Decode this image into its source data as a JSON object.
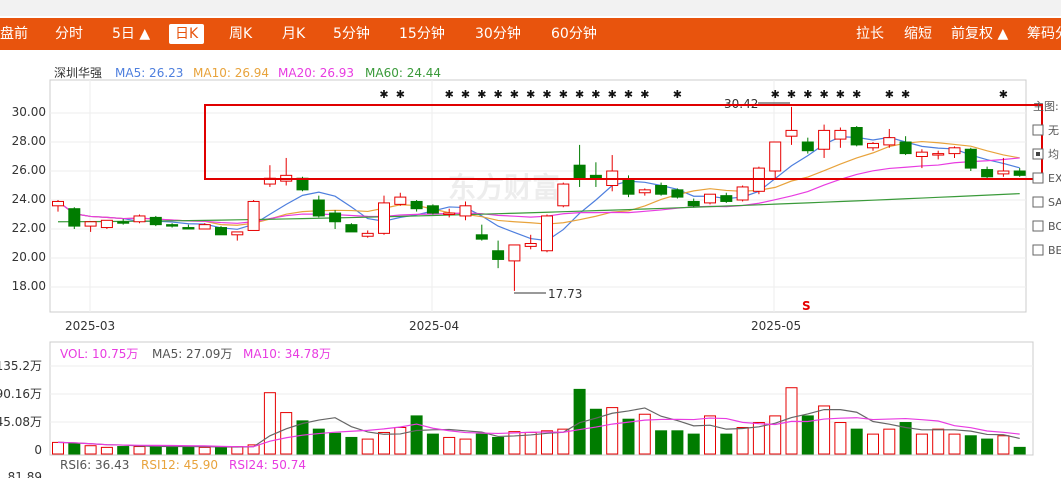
{
  "toolbar": {
    "tabs": [
      "盘前",
      "分时",
      "5日 ▲",
      "日K",
      "周K",
      "月K",
      "5分钟",
      "15分钟",
      "30分钟",
      "60分钟"
    ],
    "active_tab": "日K",
    "right": [
      "拉长",
      "缩短",
      "前复权 ▲",
      "筹码分"
    ]
  },
  "legend": {
    "name": "深圳华强",
    "ma5": "MA5: 26.23",
    "ma10": "MA10: 26.94",
    "ma20": "MA20: 26.93",
    "ma60": "MA60: 24.44"
  },
  "price_axis": [
    "30.00",
    "28.00",
    "26.00",
    "24.00",
    "22.00",
    "20.00",
    "18.00"
  ],
  "date_axis": [
    "2025-03",
    "2025-04",
    "2025-05"
  ],
  "annotations": {
    "high": "30.42",
    "low": "17.73",
    "marker": "S"
  },
  "side_panel": [
    "主图:",
    "无",
    "均",
    "EX",
    "SA",
    "BO",
    "BE"
  ],
  "watermark": "东方财富",
  "volume": {
    "legend": {
      "vol": "VOL: 10.75万",
      "ma5": "MA5: 27.09万",
      "ma10": "MA10: 34.78万"
    },
    "axis": [
      "135.2万",
      "90.16万",
      "45.08万",
      "0"
    ]
  },
  "rsi": {
    "legend": {
      "rsi6": "RSI6: 36.43",
      "rsi12": "RSI12: 45.90",
      "rsi24": "RSI24: 50.74"
    },
    "axis_top": "81.89"
  },
  "colors": {
    "up": "#e60000",
    "down": "#007c00",
    "toolbar": "#e8540d",
    "ma5": "#4e7fde",
    "ma10": "#e8a33c",
    "ma20": "#e83ce1",
    "ma60": "#3a9a3a",
    "highlight": "#e00000"
  },
  "chart_data": {
    "type": "candlestick",
    "title": "深圳华强",
    "ylim": [
      16.5,
      31.5
    ],
    "candles": [
      {
        "o": 23.6,
        "h": 24.0,
        "l": 23.2,
        "c": 23.9
      },
      {
        "o": 23.4,
        "h": 23.5,
        "l": 22.0,
        "c": 22.2
      },
      {
        "o": 22.2,
        "h": 22.5,
        "l": 21.8,
        "c": 22.5
      },
      {
        "o": 22.1,
        "h": 22.6,
        "l": 22.0,
        "c": 22.6
      },
      {
        "o": 22.5,
        "h": 22.7,
        "l": 22.3,
        "c": 22.4
      },
      {
        "o": 22.5,
        "h": 23.0,
        "l": 22.4,
        "c": 22.9
      },
      {
        "o": 22.8,
        "h": 22.9,
        "l": 22.2,
        "c": 22.3
      },
      {
        "o": 22.3,
        "h": 22.4,
        "l": 22.1,
        "c": 22.2
      },
      {
        "o": 22.1,
        "h": 22.3,
        "l": 22.0,
        "c": 22.0
      },
      {
        "o": 22.0,
        "h": 22.4,
        "l": 22.0,
        "c": 22.3
      },
      {
        "o": 22.1,
        "h": 22.2,
        "l": 21.6,
        "c": 21.6
      },
      {
        "o": 21.6,
        "h": 21.8,
        "l": 21.2,
        "c": 21.8
      },
      {
        "o": 21.9,
        "h": 24.0,
        "l": 21.9,
        "c": 23.9
      },
      {
        "o": 25.1,
        "h": 26.4,
        "l": 24.9,
        "c": 25.5
      },
      {
        "o": 25.3,
        "h": 26.9,
        "l": 25.0,
        "c": 25.7
      },
      {
        "o": 25.5,
        "h": 25.6,
        "l": 24.6,
        "c": 24.7
      },
      {
        "o": 24.0,
        "h": 24.3,
        "l": 22.8,
        "c": 22.9
      },
      {
        "o": 23.1,
        "h": 23.3,
        "l": 22.0,
        "c": 22.5
      },
      {
        "o": 22.3,
        "h": 22.4,
        "l": 21.8,
        "c": 21.8
      },
      {
        "o": 21.5,
        "h": 21.9,
        "l": 21.4,
        "c": 21.7
      },
      {
        "o": 21.7,
        "h": 24.3,
        "l": 21.6,
        "c": 23.8
      },
      {
        "o": 23.7,
        "h": 24.5,
        "l": 23.6,
        "c": 24.2
      },
      {
        "o": 23.9,
        "h": 24.0,
        "l": 23.2,
        "c": 23.4
      },
      {
        "o": 23.6,
        "h": 23.7,
        "l": 23.0,
        "c": 23.1
      },
      {
        "o": 23.0,
        "h": 23.4,
        "l": 22.8,
        "c": 23.1
      },
      {
        "o": 22.9,
        "h": 23.9,
        "l": 22.6,
        "c": 23.6
      },
      {
        "o": 21.6,
        "h": 22.3,
        "l": 21.2,
        "c": 21.3
      },
      {
        "o": 20.5,
        "h": 21.2,
        "l": 19.3,
        "c": 19.9
      },
      {
        "o": 19.8,
        "h": 20.9,
        "l": 17.73,
        "c": 20.9
      },
      {
        "o": 20.8,
        "h": 21.6,
        "l": 20.6,
        "c": 21.0
      },
      {
        "o": 20.5,
        "h": 23.0,
        "l": 20.4,
        "c": 22.9
      },
      {
        "o": 23.6,
        "h": 25.2,
        "l": 23.5,
        "c": 25.1
      },
      {
        "o": 26.4,
        "h": 27.8,
        "l": 24.9,
        "c": 25.5
      },
      {
        "o": 25.7,
        "h": 26.6,
        "l": 24.9,
        "c": 25.5
      },
      {
        "o": 25.0,
        "h": 27.1,
        "l": 24.6,
        "c": 26.0
      },
      {
        "o": 25.4,
        "h": 25.7,
        "l": 24.2,
        "c": 24.4
      },
      {
        "o": 24.5,
        "h": 24.8,
        "l": 24.3,
        "c": 24.7
      },
      {
        "o": 25.0,
        "h": 25.2,
        "l": 24.3,
        "c": 24.4
      },
      {
        "o": 24.7,
        "h": 24.8,
        "l": 24.1,
        "c": 24.2
      },
      {
        "o": 23.9,
        "h": 24.1,
        "l": 23.5,
        "c": 23.6
      },
      {
        "o": 23.8,
        "h": 24.4,
        "l": 23.7,
        "c": 24.4
      },
      {
        "o": 24.3,
        "h": 24.5,
        "l": 23.8,
        "c": 23.9
      },
      {
        "o": 24.0,
        "h": 25.0,
        "l": 23.9,
        "c": 24.9
      },
      {
        "o": 24.6,
        "h": 26.3,
        "l": 24.4,
        "c": 26.2
      },
      {
        "o": 26.0,
        "h": 28.0,
        "l": 25.5,
        "c": 28.0
      },
      {
        "o": 28.4,
        "h": 30.42,
        "l": 27.8,
        "c": 28.8
      },
      {
        "o": 28.0,
        "h": 28.3,
        "l": 27.2,
        "c": 27.4
      },
      {
        "o": 27.5,
        "h": 29.2,
        "l": 26.9,
        "c": 28.8
      },
      {
        "o": 28.2,
        "h": 29.0,
        "l": 27.6,
        "c": 28.8
      },
      {
        "o": 29.0,
        "h": 29.1,
        "l": 27.7,
        "c": 27.8
      },
      {
        "o": 27.6,
        "h": 28.0,
        "l": 27.4,
        "c": 27.9
      },
      {
        "o": 27.8,
        "h": 28.9,
        "l": 27.6,
        "c": 28.3
      },
      {
        "o": 28.0,
        "h": 28.4,
        "l": 27.1,
        "c": 27.2
      },
      {
        "o": 27.0,
        "h": 27.5,
        "l": 26.2,
        "c": 27.3
      },
      {
        "o": 27.1,
        "h": 27.4,
        "l": 26.8,
        "c": 27.2
      },
      {
        "o": 27.2,
        "h": 27.7,
        "l": 26.9,
        "c": 27.6
      },
      {
        "o": 27.5,
        "h": 27.6,
        "l": 26.0,
        "c": 26.2
      },
      {
        "o": 26.1,
        "h": 26.3,
        "l": 25.5,
        "c": 25.6
      },
      {
        "o": 25.8,
        "h": 26.9,
        "l": 25.6,
        "c": 26.0
      },
      {
        "o": 26.0,
        "h": 26.2,
        "l": 25.6,
        "c": 25.7
      }
    ],
    "volume": [
      14,
      13,
      10,
      8,
      9,
      9,
      10,
      9,
      8,
      8,
      8,
      9,
      11,
      74,
      50,
      40,
      30,
      25,
      20,
      18,
      26,
      32,
      46,
      24,
      20,
      18,
      24,
      20,
      27,
      26,
      28,
      30,
      78,
      54,
      56,
      42,
      48,
      28,
      28,
      24,
      46,
      24,
      32,
      38,
      46,
      80,
      46,
      58,
      38,
      30,
      24,
      30,
      38,
      24,
      30,
      24,
      22,
      18,
      22,
      8
    ]
  }
}
